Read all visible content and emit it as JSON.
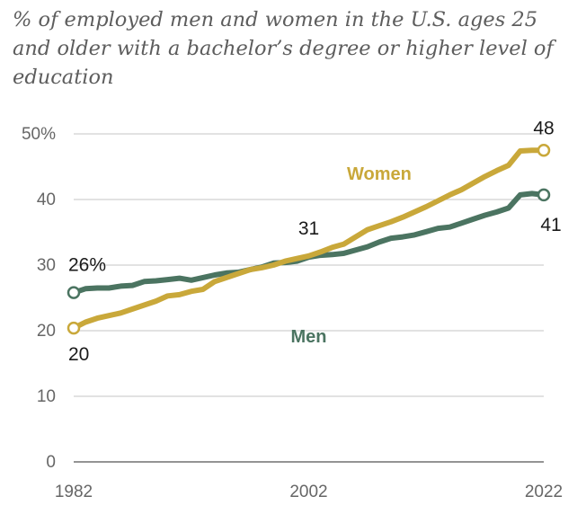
{
  "chart_data": {
    "type": "line",
    "title": "% of employed men and women in the U.S. ages 25 and older with a bachelor’s degree or higher level of education",
    "xlabel": "",
    "ylabel": "",
    "xlim": [
      1982,
      2022
    ],
    "ylim": [
      0,
      50
    ],
    "grid": true,
    "y_ticks": [
      {
        "value": 0,
        "label": "0"
      },
      {
        "value": 10,
        "label": "10"
      },
      {
        "value": 20,
        "label": "20"
      },
      {
        "value": 30,
        "label": "30"
      },
      {
        "value": 40,
        "label": "40"
      },
      {
        "value": 50,
        "label": "50%"
      }
    ],
    "x_ticks": [
      {
        "value": 1982,
        "label": "1982"
      },
      {
        "value": 2002,
        "label": "2002"
      },
      {
        "value": 2022,
        "label": "2022"
      }
    ],
    "x": [
      1982,
      1983,
      1984,
      1985,
      1986,
      1987,
      1988,
      1989,
      1990,
      1991,
      1992,
      1993,
      1994,
      1995,
      1996,
      1997,
      1998,
      1999,
      2000,
      2001,
      2002,
      2003,
      2004,
      2005,
      2006,
      2007,
      2008,
      2009,
      2010,
      2011,
      2012,
      2013,
      2014,
      2015,
      2016,
      2017,
      2018,
      2019,
      2020,
      2021,
      2022
    ],
    "series": [
      {
        "name": "Women",
        "color": "#c9a83a",
        "values": [
          20.4,
          21.3,
          21.9,
          22.3,
          22.7,
          23.3,
          23.9,
          24.5,
          25.3,
          25.5,
          26.0,
          26.3,
          27.5,
          28.1,
          28.7,
          29.3,
          29.6,
          30.0,
          30.6,
          31.0,
          31.4,
          32.0,
          32.7,
          33.2,
          34.3,
          35.4,
          36.0,
          36.6,
          37.3,
          38.1,
          38.9,
          39.8,
          40.7,
          41.5,
          42.5,
          43.5,
          44.4,
          45.2,
          47.4,
          47.5,
          47.5
        ]
      },
      {
        "name": "Men",
        "color": "#4b7461",
        "values": [
          25.8,
          26.4,
          26.5,
          26.5,
          26.8,
          26.9,
          27.5,
          27.6,
          27.8,
          28.0,
          27.7,
          28.1,
          28.5,
          28.8,
          28.9,
          29.3,
          29.7,
          30.3,
          30.4,
          30.6,
          31.2,
          31.5,
          31.6,
          31.8,
          32.3,
          32.8,
          33.5,
          34.1,
          34.3,
          34.6,
          35.1,
          35.6,
          35.8,
          36.4,
          37.0,
          37.6,
          38.1,
          38.7,
          40.7,
          40.9,
          40.7
        ]
      }
    ],
    "annotations": [
      {
        "text": "26%",
        "x": 1982,
        "series": "Men"
      },
      {
        "text": "20",
        "x": 1982,
        "series": "Women"
      },
      {
        "text": "31",
        "x": 2002,
        "series": "Women"
      },
      {
        "text": "48",
        "x": 2022,
        "series": "Women"
      },
      {
        "text": "41",
        "x": 2022,
        "series": "Men"
      }
    ],
    "series_labels": [
      {
        "text": "Women",
        "series": "Women"
      },
      {
        "text": "Men",
        "series": "Men"
      }
    ]
  }
}
